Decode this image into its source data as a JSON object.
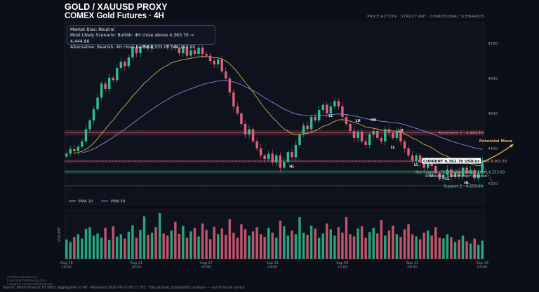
{
  "header": {
    "title": "GOLD / XAUUSD PROXY",
    "subtitle": "COMEX Gold Futures · 4H",
    "tagline": "PRICE ACTION · STRUCTURE · CONDITIONAL SCENARIOS"
  },
  "bias": {
    "line1": "Market Bias: Neutral",
    "line2": "Most Likely Scenario: Bullish: 4H close above 4,363.70 → 4,444.90",
    "line3": "Alternative: Bearish: 4H close below 4,333.00 → 4,293.00"
  },
  "footer": {
    "source": "Source: Yahoo Finance 1H OHLC aggregated to 4H · Retrieved 2026-09-16 06:17 UTC · Educational, probabilistic analysis — not financial advice",
    "wm1": "smartfxtradeedu.com",
    "wm2": "t.me/smartfxtradeeducation",
    "wm3": "instagram.com/smartfxtradeedu"
  },
  "colors": {
    "bull": "#2fbf8f",
    "bear": "#e0607a",
    "ema20": "#d9a94a",
    "ema50": "#8a83e0",
    "resistance": "#d05a6a",
    "support": "#3ec27f",
    "current": "#ffffff",
    "arrow": "#e7b94a"
  },
  "chart_data": {
    "type": "candlestick",
    "ylim": [
      4240,
      4760
    ],
    "yticks": [
      4300,
      4400,
      4500,
      4600,
      4700
    ],
    "xticks": [
      {
        "i": 0,
        "l1": "Aug 18",
        "l2": "16:00"
      },
      {
        "i": 18,
        "l1": "Aug 21",
        "l2": "20:00"
      },
      {
        "i": 36,
        "l1": "Aug 27",
        "l2": "00:00"
      },
      {
        "i": 53,
        "l1": "Sep 01",
        "l2": "04:00"
      },
      {
        "i": 71,
        "l1": "Sep 04",
        "l2": "12:00"
      },
      {
        "i": 89,
        "l1": "Sep 11",
        "l2": "08:00"
      },
      {
        "i": 107,
        "l1": "Sep 16",
        "l2": "04:00"
      }
    ],
    "closes": [
      4385,
      4398,
      4392,
      4405,
      4420,
      4455,
      4480,
      4512,
      4545,
      4585,
      4570,
      4602,
      4595,
      4630,
      4648,
      4635,
      4660,
      4690,
      4672,
      4690,
      4705,
      4685,
      4710,
      4698,
      4715,
      4702,
      4692,
      4708,
      4686,
      4672,
      4690,
      4665,
      4680,
      4670,
      4688,
      4670,
      4665,
      4650,
      4640,
      4655,
      4620,
      4600,
      4560,
      4520,
      4500,
      4470,
      4440,
      4455,
      4420,
      4400,
      4380,
      4370,
      4385,
      4360,
      4380,
      4345,
      4362,
      4390,
      4375,
      4410,
      4440,
      4465,
      4455,
      4490,
      4480,
      4510,
      4525,
      4500,
      4520,
      4535,
      4520,
      4490,
      4470,
      4450,
      4430,
      4448,
      4420,
      4410,
      4440,
      4450,
      4430,
      4420,
      4455,
      4445,
      4430,
      4450,
      4420,
      4400,
      4380,
      4365,
      4380,
      4360,
      4345,
      4368,
      4350,
      4330,
      4312,
      4325,
      4340,
      4318,
      4332,
      4320,
      4345,
      4328,
      4338,
      4315,
      4330,
      4362.7
    ],
    "opens_mode": "previous_close",
    "volumes": [
      55,
      48,
      62,
      70,
      58,
      85,
      90,
      66,
      72,
      60,
      88,
      54,
      92,
      63,
      70,
      58,
      77,
      95,
      60,
      82,
      120,
      68,
      74,
      90,
      130,
      72,
      66,
      80,
      105,
      71,
      93,
      60,
      78,
      88,
      64,
      100,
      82,
      56,
      91,
      70,
      86,
      68,
      112,
      74,
      60,
      98,
      84,
      66,
      78,
      90,
      70,
      62,
      88,
      74,
      60,
      108,
      92,
      66,
      80,
      70,
      118,
      74,
      68,
      94,
      86,
      60,
      72,
      100,
      84,
      66,
      90,
      74,
      118,
      70,
      64,
      86,
      92,
      60,
      76,
      88,
      72,
      110,
      66,
      80,
      94,
      70,
      62,
      84,
      98,
      70,
      64,
      56,
      74,
      80,
      66,
      90,
      60,
      58,
      70,
      62,
      48,
      54,
      66,
      50,
      44,
      58,
      40,
      52
    ],
    "ema20_closes_note": "",
    "levels": {
      "resistance2": {
        "value": 4444.9,
        "label": "Resistance 2 - 4,444.90"
      },
      "key_resistance": {
        "value": 4363.7,
        "label": "Key Resistance - Bullish Breakout Level  4,363.70"
      },
      "key_support": {
        "value": 4333.0,
        "label": "Key Support - Bearish Breakdown Level  4,333.00"
      },
      "support2": {
        "value": 4293.0,
        "label": "Support 2 - 4,293.00"
      },
      "current": {
        "value": 4362.7,
        "label": "CURRENT  4,362.70 USD/oz"
      }
    },
    "annotations": {
      "potential_move": "Potential Move",
      "alternative": "Alternative · Confirmation Required"
    },
    "structure_labels": [
      {
        "i": 58,
        "text": "HL",
        "pos": "below"
      },
      {
        "i": 68,
        "text": "LL",
        "pos": "below"
      },
      {
        "i": 75,
        "text": "LH",
        "pos": "above"
      },
      {
        "i": 79,
        "text": "HH",
        "pos": "above"
      },
      {
        "i": 84,
        "text": "LL",
        "pos": "below"
      },
      {
        "i": 86,
        "text": "LH",
        "pos": "above"
      },
      {
        "i": 90,
        "text": "LL",
        "pos": "below"
      },
      {
        "i": 94,
        "text": "LL",
        "pos": "below"
      },
      {
        "i": 98,
        "text": "LL",
        "pos": "below"
      },
      {
        "i": 103,
        "text": "HL",
        "pos": "below"
      }
    ],
    "legend": {
      "ema20": "EMA 20",
      "ema50": "EMA 50"
    },
    "volume_label": "VOLUME"
  }
}
